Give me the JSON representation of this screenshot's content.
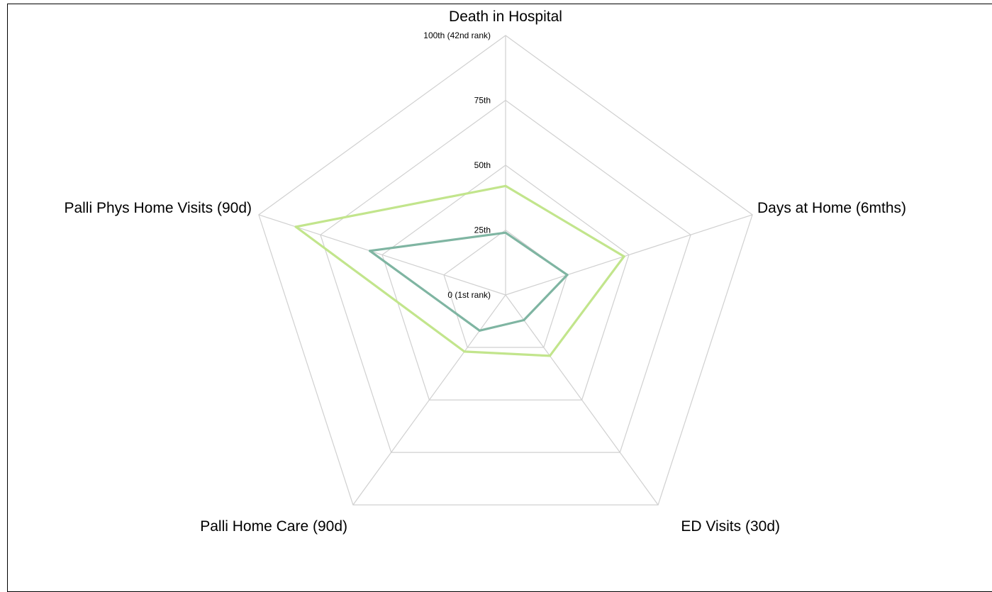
{
  "chart_data": {
    "type": "radar",
    "title": "",
    "axes": [
      "Death in Hospital",
      "Days at Home (6mths)",
      "ED Visits (30d)",
      "Palli Home Care (90d)",
      "Palli Phys Home Visits (90d)"
    ],
    "radial_range": [
      0,
      100
    ],
    "radial_ticks": [
      {
        "value": 0,
        "label": "0 (1st rank)"
      },
      {
        "value": 25,
        "label": "25th"
      },
      {
        "value": 50,
        "label": "50th"
      },
      {
        "value": 75,
        "label": "75th"
      },
      {
        "value": 100,
        "label": "100th (42nd rank)"
      }
    ],
    "grid_rings": [
      0,
      25,
      50,
      75,
      100
    ],
    "grid": true,
    "legend": "none",
    "series": [
      {
        "color": "#c2e58c",
        "values": [
          42,
          48,
          29,
          27,
          85
        ]
      },
      {
        "color": "#7fb5a2",
        "values": [
          24,
          25,
          12,
          17,
          55
        ]
      }
    ]
  }
}
